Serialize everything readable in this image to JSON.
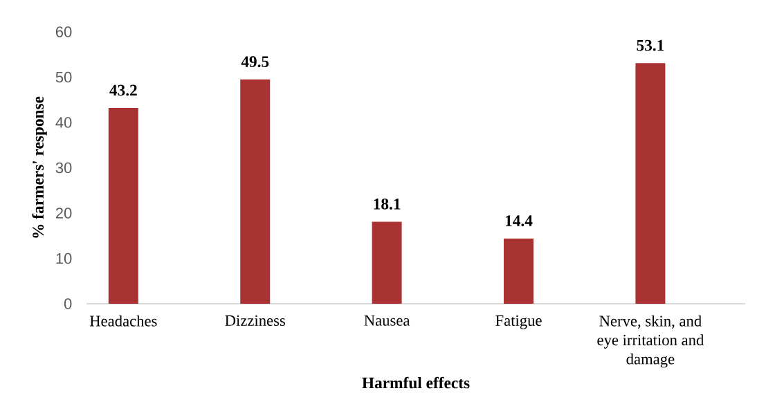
{
  "chart_data": {
    "type": "bar",
    "xlabel": "Harmful effects",
    "ylabel": "% farmers' response",
    "categories": [
      "Headaches",
      "Dizziness",
      "Nausea",
      "Fatigue",
      "Nerve, skin, and eye irritation and damage"
    ],
    "values": [
      43.2,
      49.5,
      18.1,
      14.4,
      53.1
    ],
    "color": "#a93232",
    "ylim": [
      0,
      60
    ],
    "yticks": [
      0,
      10,
      20,
      30,
      40,
      50,
      60
    ],
    "data_labels": true
  }
}
